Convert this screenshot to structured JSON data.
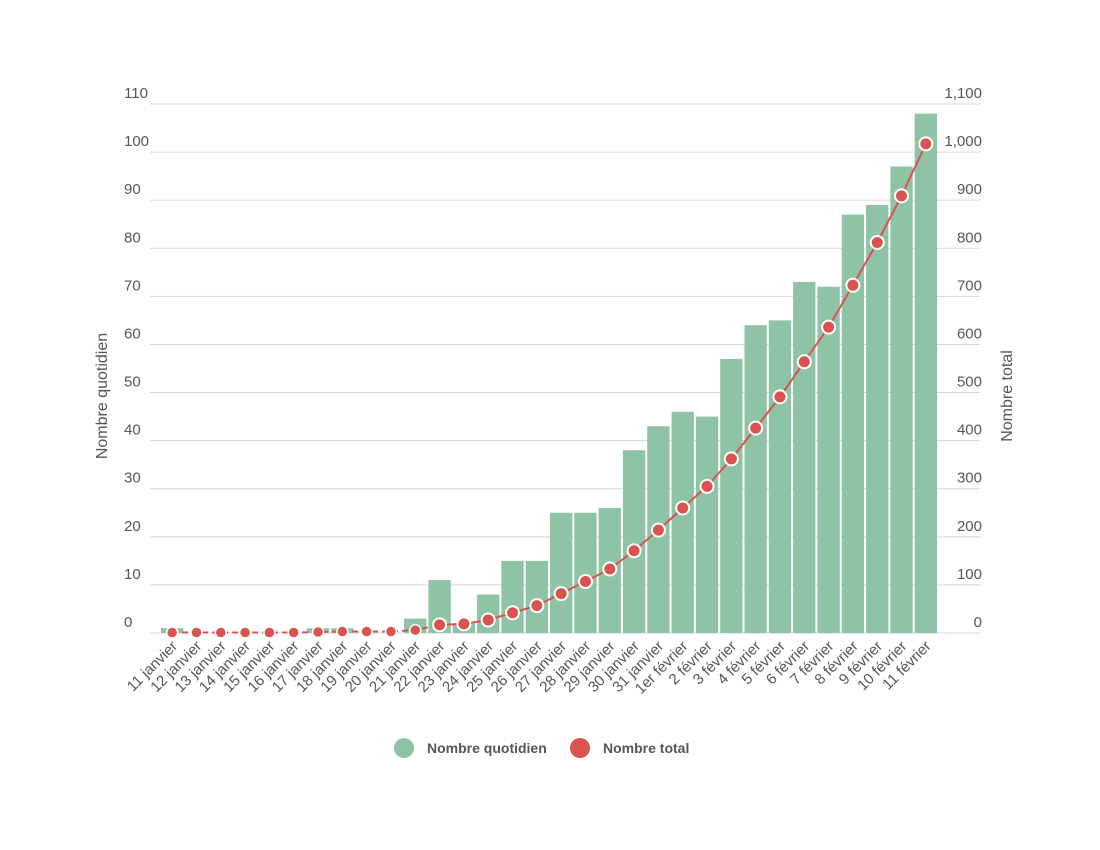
{
  "chart_data": {
    "type": "bar",
    "categories": [
      "11 janvier",
      "12 janvier",
      "13 janvier",
      "14 janvier",
      "15 janvier",
      "16 janvier",
      "17 janvier",
      "18 janvier",
      "19 janvier",
      "20 janvier",
      "21 janvier",
      "22 janvier",
      "23 janvier",
      "24 janvier",
      "25 janvier",
      "26 janvier",
      "27 janvier",
      "28 janvier",
      "29 janvier",
      "30 janvier",
      "31 janvier",
      "1er février",
      "2 février",
      "3 février",
      "4 février",
      "5 février",
      "6 février",
      "7 février",
      "8 février",
      "9 février",
      "10 février",
      "11 février"
    ],
    "series": [
      {
        "name": "Nombre quotidien",
        "type": "bar",
        "axis": "left",
        "color": "#8fc3a6",
        "values": [
          1,
          0,
          0,
          0,
          0,
          0,
          1,
          1,
          0,
          0,
          3,
          11,
          2,
          8,
          15,
          15,
          25,
          25,
          26,
          38,
          43,
          46,
          45,
          57,
          64,
          65,
          73,
          72,
          87,
          89,
          97,
          108
        ]
      },
      {
        "name": "Nombre total",
        "type": "line",
        "axis": "right",
        "color": "#d9534f",
        "values": [
          1,
          1,
          1,
          1,
          1,
          1,
          2,
          3,
          3,
          3,
          6,
          17,
          19,
          27,
          42,
          57,
          82,
          107,
          133,
          171,
          214,
          260,
          305,
          362,
          426,
          491,
          564,
          636,
          723,
          812,
          909,
          1017
        ]
      }
    ],
    "y_left": {
      "label": "Nombre quotidien",
      "min": 0,
      "max": 110,
      "ticks": [
        "0",
        "10",
        "20",
        "30",
        "40",
        "50",
        "60",
        "70",
        "80",
        "90",
        "100",
        "110"
      ]
    },
    "y_right": {
      "label": "Nombre total",
      "min": 0,
      "max": 1100,
      "ticks": [
        "0",
        "100",
        "200",
        "300",
        "400",
        "500",
        "600",
        "700",
        "800",
        "900",
        "1,000",
        "1,100"
      ]
    },
    "grid": true,
    "legend_position": "bottom"
  }
}
